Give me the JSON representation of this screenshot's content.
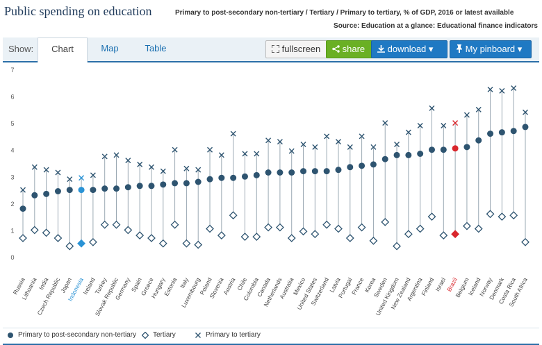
{
  "header": {
    "title": "Public spending on education",
    "subtitle": "Primary to post-secondary non-tertiary / Tertiary / Primary to tertiary, % of GDP, 2016 or latest available",
    "source": "Source: Education at a glance: Educational finance indicators"
  },
  "toolbar": {
    "show_label": "Show:",
    "tabs": [
      "Chart",
      "Map",
      "Table"
    ],
    "fullscreen_label": "fullscreen",
    "share_label": "share",
    "download_label": "download",
    "pinboard_label": "My pinboard"
  },
  "colors": {
    "primary": "#2e5470",
    "highlight_indonesia": "#2a93d5",
    "highlight_brazil": "#d9262c",
    "accent_blue": "#1f79c3",
    "share_green": "#6ab024"
  },
  "chart_data": {
    "type": "scatter",
    "yticks": [
      0,
      1,
      2,
      3,
      4,
      5,
      6,
      7
    ],
    "ylim": [
      0,
      7
    ],
    "categories": [
      "Russia",
      "Lithuania",
      "India",
      "Czech Republic",
      "Japan",
      "Indonesia",
      "Ireland",
      "Turkey",
      "Slovak Republic",
      "Germany",
      "Spain",
      "Greece",
      "Hungary",
      "Estonia",
      "Italy",
      "Luxembourg",
      "Poland",
      "Slovenia",
      "Austria",
      "Chile",
      "Colombia",
      "Canada",
      "Netherlands",
      "Australia",
      "Mexico",
      "United States",
      "Switzerland",
      "Latvia",
      "Portugal",
      "France",
      "Korea",
      "Sweden",
      "United Kingdom",
      "New Zealand",
      "Argentina",
      "Finland",
      "Israel",
      "Brazil",
      "Belgium",
      "Iceland",
      "Norway",
      "Denmark",
      "Costa Rica",
      "South Africa"
    ],
    "highlighted": {
      "Indonesia": "highlight_indonesia",
      "Brazil": "highlight_brazil"
    },
    "series": [
      {
        "name": "Primary to post-secondary non-tertiary",
        "marker": "circle",
        "values": [
          1.8,
          2.3,
          2.35,
          2.45,
          2.5,
          2.5,
          2.5,
          2.55,
          2.55,
          2.6,
          2.65,
          2.65,
          2.7,
          2.75,
          2.75,
          2.8,
          2.9,
          2.95,
          2.95,
          3.0,
          3.05,
          3.15,
          3.15,
          3.15,
          3.2,
          3.2,
          3.2,
          3.25,
          3.35,
          3.4,
          3.45,
          3.65,
          3.8,
          3.8,
          3.85,
          4.0,
          4.0,
          4.05,
          4.1,
          4.35,
          4.6,
          4.65,
          4.7,
          4.85
        ]
      },
      {
        "name": "Tertiary",
        "marker": "diamond",
        "values": [
          0.7,
          1.0,
          0.9,
          0.7,
          0.4,
          0.5,
          0.55,
          1.2,
          1.2,
          1.0,
          0.8,
          0.7,
          0.5,
          1.2,
          0.5,
          0.45,
          1.05,
          0.8,
          1.55,
          0.75,
          0.75,
          1.1,
          1.1,
          0.7,
          0.95,
          0.85,
          1.2,
          1.05,
          0.7,
          1.1,
          0.6,
          1.3,
          0.4,
          0.85,
          1.05,
          1.5,
          0.8,
          0.85,
          1.15,
          1.05,
          1.6,
          1.5,
          1.55,
          0.55
        ]
      },
      {
        "name": "Primary to tertiary",
        "marker": "x",
        "values": [
          2.5,
          3.35,
          3.25,
          3.15,
          2.9,
          2.95,
          3.05,
          3.75,
          3.8,
          3.6,
          3.45,
          3.35,
          3.2,
          4.0,
          3.3,
          3.25,
          4.0,
          3.8,
          4.6,
          3.85,
          3.85,
          4.35,
          4.3,
          3.95,
          4.2,
          4.1,
          4.5,
          4.3,
          4.1,
          4.5,
          4.1,
          5.0,
          4.2,
          4.65,
          4.9,
          5.55,
          4.9,
          5.0,
          5.3,
          5.5,
          6.25,
          6.2,
          6.3,
          5.4
        ]
      }
    ]
  }
}
